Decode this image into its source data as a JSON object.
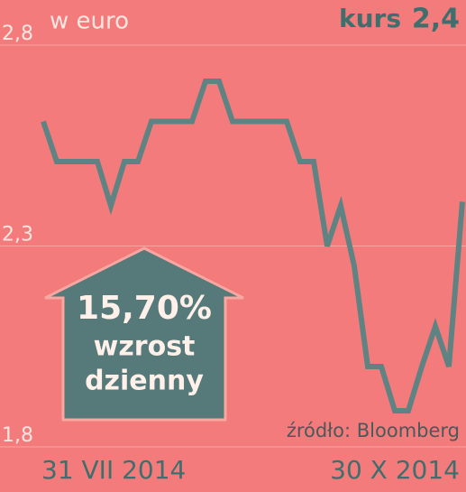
{
  "chart_data": {
    "type": "line",
    "subtitle": "w euro",
    "current": {
      "label": "kurs",
      "value": "2,4"
    },
    "source": "źródło: Bloomberg",
    "badge": {
      "value": "15,70%",
      "line1": "wzrost",
      "line2": "dzienny"
    },
    "categories": [
      "31 VII 2014",
      null,
      null,
      null,
      null,
      null,
      null,
      null,
      null,
      null,
      null,
      null,
      null,
      null,
      null,
      null,
      null,
      null,
      null,
      null,
      null,
      null,
      null,
      null,
      null,
      null,
      null,
      null,
      null,
      null,
      null,
      "30 X 2014"
    ],
    "series": [
      {
        "name": "kurs",
        "color": "#5f8382",
        "values": [
          2.61,
          2.51,
          2.51,
          2.51,
          2.51,
          2.4,
          2.51,
          2.51,
          2.61,
          2.61,
          2.61,
          2.61,
          2.71,
          2.71,
          2.61,
          2.61,
          2.61,
          2.61,
          2.61,
          2.51,
          2.51,
          2.3,
          2.4,
          2.25,
          2.0,
          2.0,
          1.89,
          1.89,
          2.0,
          2.1,
          2.0,
          2.41
        ]
      }
    ],
    "ylim": [
      1.8,
      2.8
    ],
    "yticks": [
      {
        "value": 1.8,
        "label": "1,8"
      },
      {
        "value": 2.3,
        "label": "2,3"
      },
      {
        "value": 2.8,
        "label": "2,8"
      }
    ],
    "grid": true
  }
}
